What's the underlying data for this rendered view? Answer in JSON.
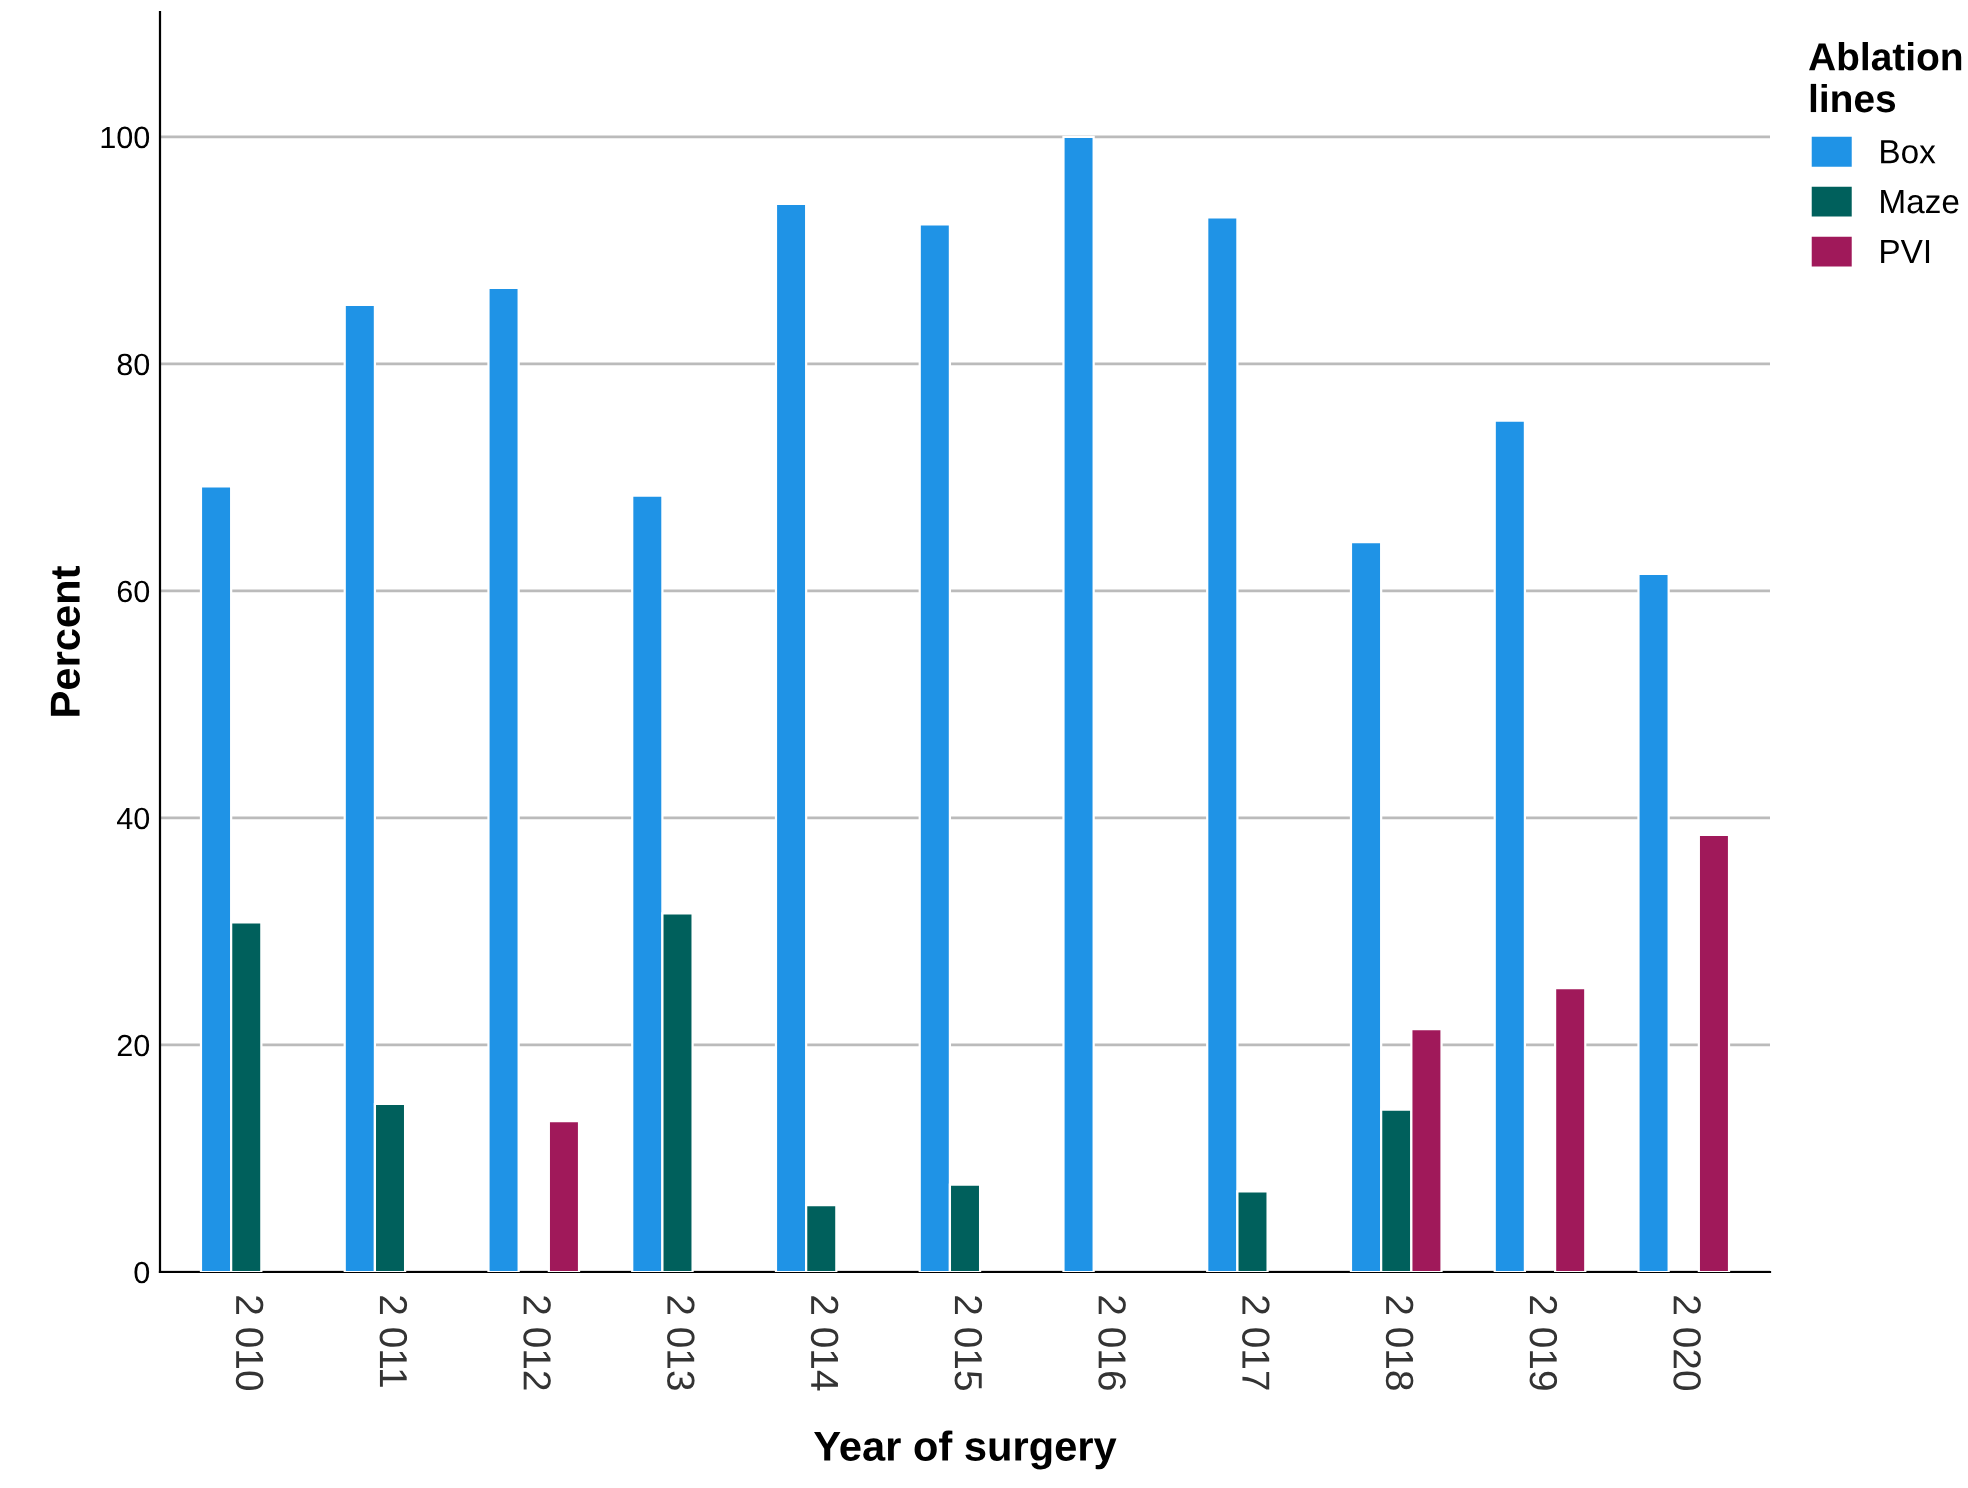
{
  "chart_data": {
    "type": "bar",
    "xlabel": "Year of surgery",
    "ylabel": "Percent",
    "legend_title": "Ablation\nlines",
    "categories": [
      "2 010",
      "2 011",
      "2 012",
      "2 013",
      "2 014",
      "2 015",
      "2 016",
      "2 017",
      "2 018",
      "2 019",
      "2 020"
    ],
    "series": [
      {
        "name": "Box",
        "color": "#1f93e6",
        "values": [
          69.2,
          85.2,
          86.7,
          68.4,
          94.1,
          92.3,
          100,
          92.9,
          64.3,
          75.0,
          61.5
        ]
      },
      {
        "name": "Maze",
        "color": "#00605c",
        "values": [
          30.8,
          14.8,
          null,
          31.6,
          5.9,
          7.7,
          null,
          7.1,
          14.3,
          null,
          null
        ]
      },
      {
        "name": "PVI",
        "color": "#a0195a",
        "values": [
          null,
          null,
          13.3,
          null,
          null,
          null,
          null,
          null,
          21.4,
          25.0,
          38.5
        ]
      }
    ],
    "ylim": [
      0,
      111
    ],
    "yticks": [
      0,
      20,
      40,
      60,
      80,
      100
    ],
    "grid": "y",
    "legend": "top right"
  }
}
